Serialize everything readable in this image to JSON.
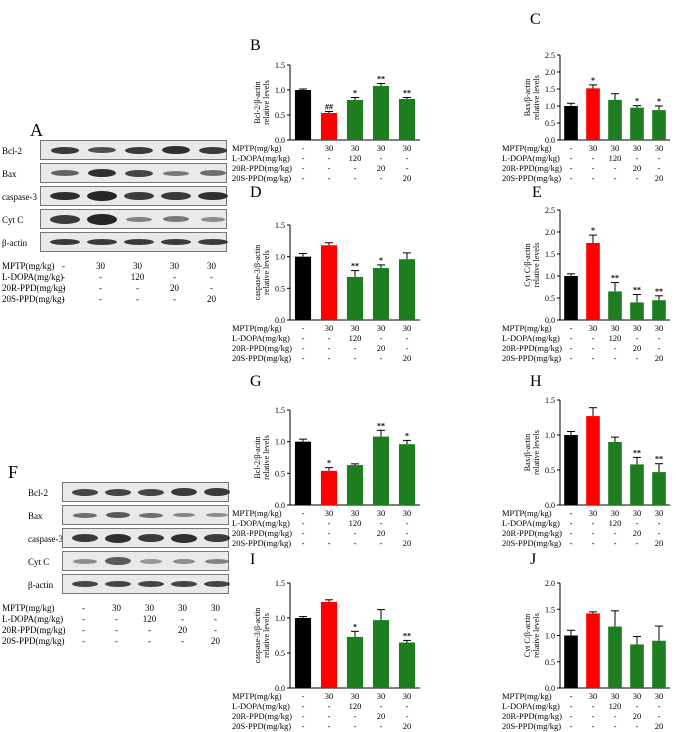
{
  "panel_letters": {
    "A": "A",
    "F": "F"
  },
  "conditions": {
    "rows": [
      {
        "label": "MPTP(mg/kg)",
        "values": [
          "-",
          "30",
          "30",
          "30",
          "30"
        ]
      },
      {
        "label": "L-DOPA(mg/kg)",
        "values": [
          "-",
          "-",
          "120",
          "-",
          "-"
        ]
      },
      {
        "label": "20R-PPD(mg/kg)",
        "values": [
          "-",
          "-",
          "-",
          "20",
          "-"
        ]
      },
      {
        "label": "20S-PPD(mg/kg)",
        "values": [
          "-",
          "-",
          "-",
          "-",
          "20"
        ]
      }
    ]
  },
  "blots": {
    "A": {
      "lanes": [
        "Bcl-2",
        "Bax",
        "caspase-3",
        "Cyt C",
        "β-actin"
      ]
    },
    "F": {
      "lanes": [
        "Bcl-2",
        "Bax",
        "caspase-3",
        "Cyt C",
        "β-actin"
      ]
    }
  },
  "colors": {
    "control": "#000000",
    "model": "#ff0000",
    "treated": "#1e7d1e"
  },
  "chart_data": [
    {
      "letter": "B",
      "type": "bar",
      "ylabel": "Bcl-2/β-actin relative levels",
      "ylim": [
        0,
        1.5
      ],
      "yticks": [
        "0.0",
        "0.5",
        "1.0",
        "1.5"
      ],
      "values": [
        1.0,
        0.54,
        0.8,
        1.08,
        0.82
      ],
      "errors": [
        0.02,
        0.03,
        0.05,
        0.05,
        0.03
      ],
      "sig": [
        "",
        "##",
        "*",
        "**",
        "**"
      ]
    },
    {
      "letter": "C",
      "type": "bar",
      "ylabel": "Bax/β-actin relative levels",
      "ylim": [
        0,
        2.5
      ],
      "yticks": [
        "0.0",
        "0.5",
        "1.0",
        "1.5",
        "2.0",
        "2.5"
      ],
      "values": [
        1.0,
        1.52,
        1.18,
        0.95,
        0.88
      ],
      "errors": [
        0.08,
        0.1,
        0.18,
        0.06,
        0.12
      ],
      "sig": [
        "",
        "*",
        "",
        "*",
        "*"
      ]
    },
    {
      "letter": "D",
      "type": "bar",
      "ylabel": "caspase-3/β-actin relative levels",
      "ylim": [
        0,
        1.5
      ],
      "yticks": [
        "0.0",
        "0.5",
        "1.0",
        "1.5"
      ],
      "values": [
        1.0,
        1.18,
        0.68,
        0.82,
        0.96
      ],
      "errors": [
        0.05,
        0.04,
        0.1,
        0.05,
        0.1
      ],
      "sig": [
        "",
        "",
        "**",
        "*",
        ""
      ]
    },
    {
      "letter": "E",
      "type": "bar",
      "ylabel": "Cyt C/β-actin relative levels",
      "ylim": [
        0,
        2.5
      ],
      "yticks": [
        "0.0",
        "0.5",
        "1.0",
        "1.5",
        "2.0",
        "2.5"
      ],
      "values": [
        1.0,
        1.75,
        0.65,
        0.4,
        0.45
      ],
      "errors": [
        0.05,
        0.18,
        0.2,
        0.18,
        0.1
      ],
      "sig": [
        "",
        "*",
        "**",
        "**",
        "**"
      ]
    },
    {
      "letter": "G",
      "type": "bar",
      "ylabel": "Bcl-2/β-actin relative levels",
      "ylim": [
        0,
        1.5
      ],
      "yticks": [
        "0.0",
        "0.5",
        "1.0",
        "1.5"
      ],
      "values": [
        1.0,
        0.54,
        0.63,
        1.08,
        0.96
      ],
      "errors": [
        0.04,
        0.05,
        0.02,
        0.1,
        0.06
      ],
      "sig": [
        "",
        "*",
        "",
        "**",
        "*"
      ]
    },
    {
      "letter": "H",
      "type": "bar",
      "ylabel": "Bax/β-actin relative levels",
      "ylim": [
        0,
        1.5
      ],
      "yticks": [
        "0.0",
        "0.5",
        "1.0",
        "1.5"
      ],
      "values": [
        1.0,
        1.27,
        0.9,
        0.58,
        0.47
      ],
      "errors": [
        0.05,
        0.12,
        0.07,
        0.1,
        0.12
      ],
      "sig": [
        "",
        "",
        "",
        "**",
        "**"
      ]
    },
    {
      "letter": "I",
      "type": "bar",
      "ylabel": "caspase-3/β-actin relative levels",
      "ylim": [
        0,
        1.5
      ],
      "yticks": [
        "0.0",
        "0.5",
        "1.0",
        "1.5"
      ],
      "values": [
        1.0,
        1.23,
        0.73,
        0.97,
        0.65
      ],
      "errors": [
        0.02,
        0.03,
        0.08,
        0.15,
        0.03
      ],
      "sig": [
        "",
        "",
        "*",
        "",
        "**"
      ]
    },
    {
      "letter": "J",
      "type": "bar",
      "ylabel": "Cyt C/β-actin relative levels",
      "ylim": [
        0,
        2.0
      ],
      "yticks": [
        "0.0",
        "0.5",
        "1.0",
        "1.5",
        "2.0"
      ],
      "values": [
        1.0,
        1.42,
        1.17,
        0.83,
        0.9
      ],
      "errors": [
        0.1,
        0.03,
        0.3,
        0.15,
        0.28
      ],
      "sig": [
        "",
        "",
        "",
        "",
        ""
      ]
    }
  ]
}
